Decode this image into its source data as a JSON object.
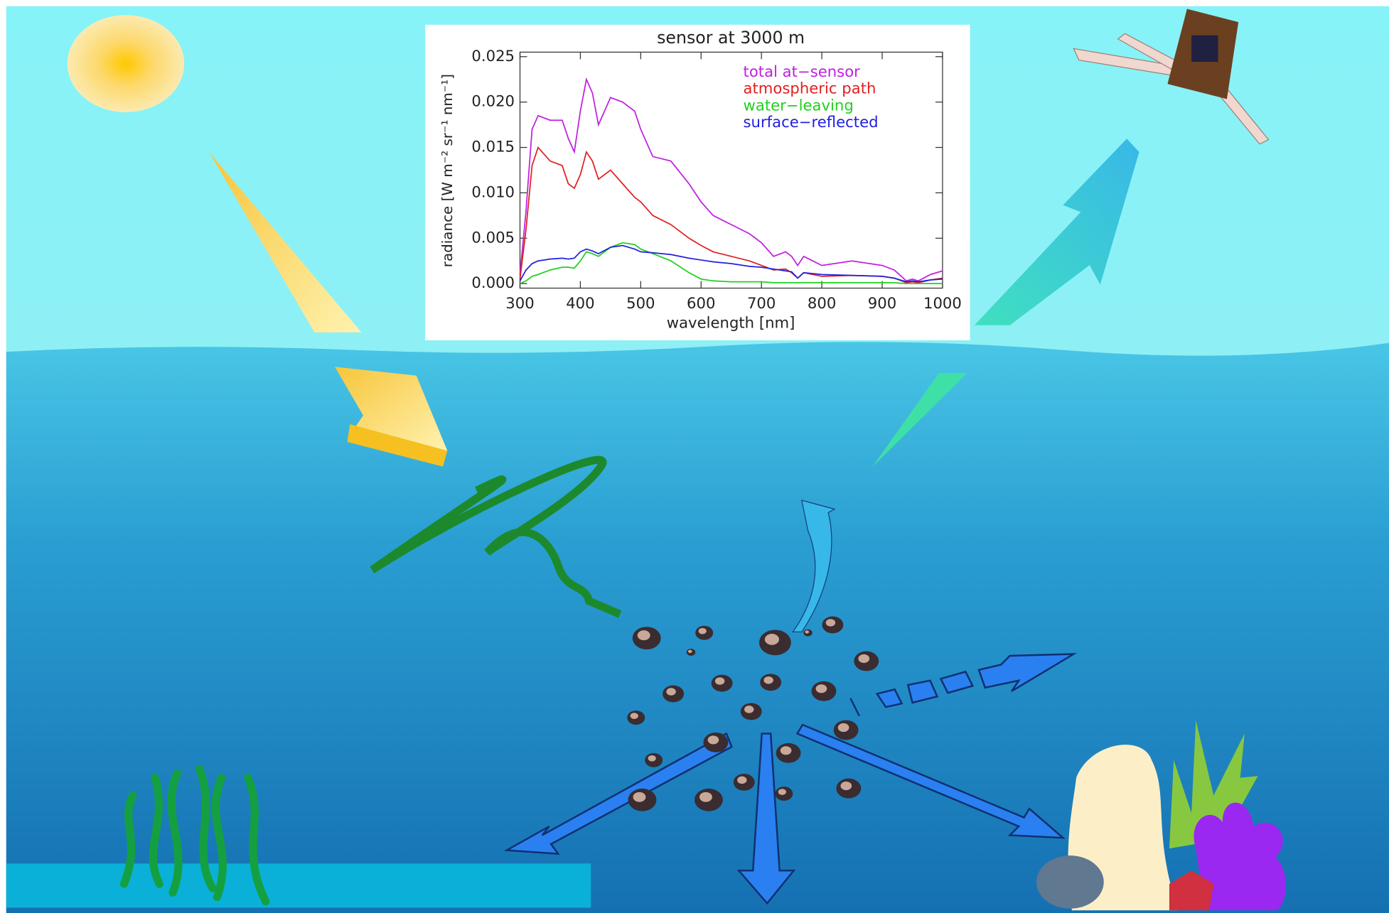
{
  "chart_data": {
    "type": "line",
    "title": "sensor at 3000 m",
    "x_label": "wavelength [nm]",
    "y_label": "radiance [W m⁻² sr⁻¹ nm⁻¹]",
    "x": [
      300,
      310,
      320,
      330,
      350,
      370,
      380,
      390,
      400,
      410,
      420,
      430,
      450,
      470,
      490,
      500,
      520,
      550,
      580,
      600,
      620,
      650,
      680,
      700,
      720,
      740,
      750,
      760,
      770,
      800,
      850,
      900,
      920,
      940,
      950,
      960,
      980,
      1000
    ],
    "series": [
      {
        "name": "total at−sensor",
        "color": "#c020e0",
        "values": [
          0.001,
          0.008,
          0.017,
          0.0185,
          0.018,
          0.018,
          0.016,
          0.0145,
          0.019,
          0.0225,
          0.021,
          0.0175,
          0.0205,
          0.02,
          0.019,
          0.017,
          0.014,
          0.0135,
          0.011,
          0.009,
          0.0075,
          0.0065,
          0.0055,
          0.0045,
          0.003,
          0.0035,
          0.003,
          0.002,
          0.003,
          0.002,
          0.0025,
          0.002,
          0.0015,
          0.0003,
          0.0005,
          0.0003,
          0.001,
          0.0014
        ]
      },
      {
        "name": "atmospheric path",
        "color": "#e02020",
        "values": [
          0.0005,
          0.006,
          0.013,
          0.015,
          0.0135,
          0.013,
          0.011,
          0.0105,
          0.012,
          0.0145,
          0.0135,
          0.0115,
          0.0125,
          0.011,
          0.0095,
          0.009,
          0.0075,
          0.0065,
          0.005,
          0.0042,
          0.0035,
          0.003,
          0.0025,
          0.002,
          0.0015,
          0.0016,
          0.0012,
          0.0006,
          0.0012,
          0.0008,
          0.0009,
          0.0008,
          0.0006,
          0.0001,
          0.0002,
          0.0001,
          0.0004,
          0.0006
        ]
      },
      {
        "name": "water−leaving",
        "color": "#20d020",
        "values": [
          0,
          0.0003,
          0.0008,
          0.001,
          0.0015,
          0.0018,
          0.0018,
          0.0017,
          0.0025,
          0.0035,
          0.0033,
          0.003,
          0.004,
          0.0045,
          0.0043,
          0.0038,
          0.0033,
          0.0025,
          0.0012,
          0.0005,
          0.0003,
          0.0002,
          0.0002,
          0.0002,
          0.0001,
          0.0001,
          0.0001,
          0.0001,
          0.0001,
          0.0001,
          0.0001,
          0.0001,
          0.0001,
          0,
          0,
          0,
          0,
          0
        ]
      },
      {
        "name": "surface−reflected",
        "color": "#2020e0",
        "values": [
          0.0003,
          0.0015,
          0.0022,
          0.0025,
          0.0027,
          0.0028,
          0.0027,
          0.0028,
          0.0035,
          0.0038,
          0.0036,
          0.0033,
          0.004,
          0.0042,
          0.0038,
          0.0035,
          0.0034,
          0.0032,
          0.0028,
          0.0026,
          0.0024,
          0.0022,
          0.0019,
          0.0018,
          0.0016,
          0.0014,
          0.0013,
          0.0006,
          0.0012,
          0.001,
          0.0009,
          0.0008,
          0.0006,
          0.0002,
          0.0003,
          0.0002,
          0.0004,
          0.0005
        ]
      }
    ],
    "xlim": [
      300,
      1000
    ],
    "xticks": [
      300,
      400,
      500,
      600,
      700,
      800,
      900,
      1000
    ],
    "ylim": [
      -0.0005,
      0.0255
    ],
    "yticks": [
      {
        "value": 0,
        "label": "0.000"
      },
      {
        "value": 0.005,
        "label": "0.005"
      },
      {
        "value": 0.01,
        "label": "0.010"
      },
      {
        "value": 0.015,
        "label": "0.015"
      },
      {
        "value": 0.02,
        "label": "0.020"
      },
      {
        "value": 0.025,
        "label": "0.025"
      }
    ],
    "legend": "upper right",
    "grid": false
  }
}
